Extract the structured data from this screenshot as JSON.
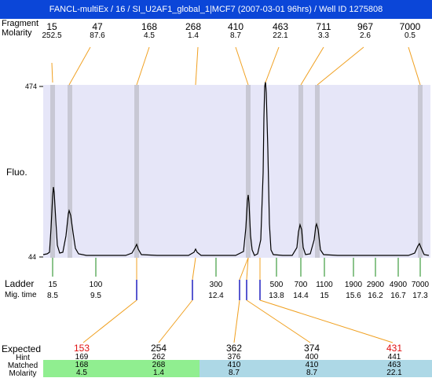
{
  "window": {
    "title": "FANCL-multiEx / 16 / SI_U2AF1_global_1|MCF7 (2007-03-01 96hrs) / Well ID 1275808"
  },
  "top": {
    "header_fragment": "Fragment",
    "header_molarity": "Molarity",
    "peaks": [
      {
        "size": "15",
        "molarity": "252.5"
      },
      {
        "size": "47",
        "molarity": "87.6"
      },
      {
        "size": "168",
        "molarity": "4.5"
      },
      {
        "size": "268",
        "molarity": "1.4"
      },
      {
        "size": "410",
        "molarity": "8.7"
      },
      {
        "size": "463",
        "molarity": "22.1"
      },
      {
        "size": "711",
        "molarity": "3.3"
      },
      {
        "size": "967",
        "molarity": "2.6"
      },
      {
        "size": "7000",
        "molarity": "0.5"
      }
    ]
  },
  "plot": {
    "y_top": "474",
    "y_bottom": "44",
    "ylabel": "Fluo.",
    "colors": {
      "background": "#e6e6f8",
      "marker_band": "#c8c8d4",
      "trace": "#000000",
      "connector": "#f0a020"
    }
  },
  "ladder": {
    "header": "Ladder",
    "migtime_header": "Mig. time",
    "items": [
      {
        "size": "15",
        "time": "8.5"
      },
      {
        "size": "100",
        "time": "9.5"
      },
      {
        "size": "300",
        "time": "12.4"
      },
      {
        "size": "500",
        "time": "13.8"
      },
      {
        "size": "700",
        "time": "14.4"
      },
      {
        "size": "1100",
        "time": "15"
      },
      {
        "size": "1900",
        "time": "15.6"
      },
      {
        "size": "2900",
        "time": "16.2"
      },
      {
        "size": "4900",
        "time": "16.7"
      },
      {
        "size": "7000",
        "time": "17.3"
      }
    ]
  },
  "bottom": {
    "expected_label": "Expected",
    "hint_label": "Hint",
    "matched_label": "Matched",
    "molarity_label": "Molarity",
    "columns": [
      {
        "expected": "153",
        "hint": "169",
        "matched": "168",
        "molarity": "4.5",
        "expected_red": true
      },
      {
        "expected": "254",
        "hint": "262",
        "matched": "268",
        "molarity": "1.4",
        "expected_red": false
      },
      {
        "expected": "362",
        "hint": "376",
        "matched": "410",
        "molarity": "8.7",
        "expected_red": false
      },
      {
        "expected": "374",
        "hint": "400",
        "matched": "410",
        "molarity": "8.7",
        "expected_red": false
      },
      {
        "expected": "431",
        "hint": "441",
        "matched": "463",
        "molarity": "22.1",
        "expected_red": true
      }
    ],
    "colors": {
      "green_band": "#90ee90",
      "blue_band": "#add8e6",
      "red_text": "#e01010"
    }
  }
}
